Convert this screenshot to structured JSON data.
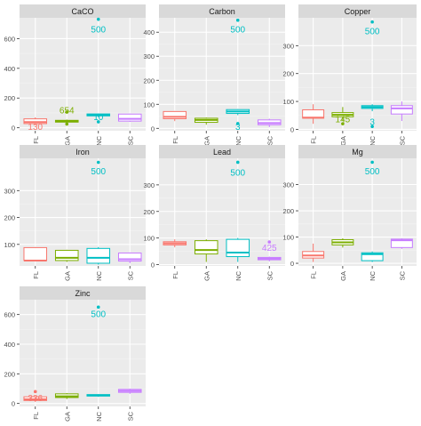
{
  "chart_data": {
    "type": "boxplot",
    "layout": "facet-grid",
    "categories": [
      "FL",
      "GA",
      "NC",
      "SC"
    ],
    "colors": {
      "FL": "#F8766D",
      "GA": "#7CAE00",
      "NC": "#00BFC4",
      "SC": "#C77CFF"
    },
    "panel_background": "#EBEBEB",
    "strip_background": "#D9D9D9",
    "grid": true,
    "legend": "none",
    "panels": [
      {
        "title": "CaCO",
        "ylim": [
          -20,
          740
        ],
        "yticks": [
          0,
          200,
          400,
          600
        ],
        "boxes": [
          {
            "category": "FL",
            "q1": 28,
            "median": 38,
            "q3": 60,
            "lower": 15,
            "upper": 70,
            "outliers": []
          },
          {
            "category": "GA",
            "q1": 38,
            "median": 45,
            "q3": 50,
            "lower": 25,
            "upper": 55,
            "outliers": [
              25,
              105
            ]
          },
          {
            "category": "NC",
            "q1": 80,
            "median": 86,
            "q3": 93,
            "lower": 72,
            "upper": 95,
            "outliers": [
              40,
              730
            ]
          },
          {
            "category": "SC",
            "q1": 45,
            "median": 60,
            "q3": 92,
            "lower": 40,
            "upper": 95,
            "outliers": []
          }
        ],
        "annotations": [
          {
            "text": "500",
            "category": "NC",
            "y": 660
          },
          {
            "text": "654",
            "category": "GA",
            "y": 115
          },
          {
            "text": "130",
            "category": "FL",
            "y": 5
          },
          {
            "text": "10",
            "category": "NC",
            "y": 70
          }
        ]
      },
      {
        "title": "Carbon",
        "ylim": [
          -10,
          460
        ],
        "yticks": [
          0,
          100,
          200,
          300,
          400
        ],
        "boxes": [
          {
            "category": "FL",
            "q1": 40,
            "median": 48,
            "q3": 70,
            "lower": 30,
            "upper": 72,
            "outliers": []
          },
          {
            "category": "GA",
            "q1": 25,
            "median": 35,
            "q3": 42,
            "lower": 15,
            "upper": 45,
            "outliers": []
          },
          {
            "category": "NC",
            "q1": 62,
            "median": 70,
            "q3": 78,
            "lower": 55,
            "upper": 80,
            "outliers": [
              20,
              450
            ]
          },
          {
            "category": "SC",
            "q1": 15,
            "median": 22,
            "q3": 35,
            "lower": 5,
            "upper": 40,
            "outliers": []
          }
        ],
        "annotations": [
          {
            "text": "500",
            "category": "NC",
            "y": 410
          },
          {
            "text": "3",
            "category": "NC",
            "y": 5
          }
        ]
      },
      {
        "title": "Copper",
        "ylim": [
          -5,
          400
        ],
        "yticks": [
          0,
          100,
          200,
          300
        ],
        "boxes": [
          {
            "category": "FL",
            "q1": 40,
            "median": 42,
            "q3": 70,
            "lower": 20,
            "upper": 90,
            "outliers": []
          },
          {
            "category": "GA",
            "q1": 45,
            "median": 52,
            "q3": 60,
            "lower": 30,
            "upper": 80,
            "outliers": [
              20
            ]
          },
          {
            "category": "NC",
            "q1": 75,
            "median": 80,
            "q3": 85,
            "lower": 65,
            "upper": 90,
            "outliers": [
              10,
              385
            ]
          },
          {
            "category": "SC",
            "q1": 55,
            "median": 75,
            "q3": 85,
            "lower": 30,
            "upper": 100,
            "outliers": []
          }
        ],
        "annotations": [
          {
            "text": "500",
            "category": "NC",
            "y": 350
          },
          {
            "text": "145",
            "category": "GA",
            "y": 35
          },
          {
            "text": "3",
            "category": "NC",
            "y": 25
          }
        ]
      },
      {
        "title": "Iron",
        "ylim": [
          20,
          420
        ],
        "yticks": [
          100,
          200,
          300
        ],
        "boxes": [
          {
            "category": "FL",
            "q1": 40,
            "median": 40,
            "q3": 88,
            "lower": 40,
            "upper": 90,
            "outliers": []
          },
          {
            "category": "GA",
            "q1": 40,
            "median": 50,
            "q3": 78,
            "lower": 35,
            "upper": 80,
            "outliers": []
          },
          {
            "category": "NC",
            "q1": 30,
            "median": 50,
            "q3": 85,
            "lower": 25,
            "upper": 90,
            "outliers": [
              405
            ]
          },
          {
            "category": "SC",
            "q1": 38,
            "median": 45,
            "q3": 68,
            "lower": 30,
            "upper": 70,
            "outliers": []
          }
        ],
        "annotations": [
          {
            "text": "500",
            "category": "NC",
            "y": 370
          }
        ]
      },
      {
        "title": "Lead",
        "ylim": [
          -5,
          400
        ],
        "yticks": [
          0,
          100,
          200,
          300
        ],
        "boxes": [
          {
            "category": "FL",
            "q1": 74,
            "median": 80,
            "q3": 86,
            "lower": 65,
            "upper": 95,
            "outliers": []
          },
          {
            "category": "GA",
            "q1": 40,
            "median": 55,
            "q3": 90,
            "lower": 10,
            "upper": 95,
            "outliers": []
          },
          {
            "category": "NC",
            "q1": 30,
            "median": 45,
            "q3": 95,
            "lower": 10,
            "upper": 100,
            "outliers": [
              385
            ]
          },
          {
            "category": "SC",
            "q1": 18,
            "median": 22,
            "q3": 27,
            "lower": 12,
            "upper": 30,
            "outliers": [
              85
            ]
          }
        ],
        "annotations": [
          {
            "text": "500",
            "category": "NC",
            "y": 345
          },
          {
            "text": "425",
            "category": "SC",
            "y": 62
          }
        ]
      },
      {
        "title": "Mg",
        "ylim": [
          -10,
          400
        ],
        "yticks": [
          0,
          100,
          200,
          300
        ],
        "boxes": [
          {
            "category": "FL",
            "q1": 20,
            "median": 30,
            "q3": 45,
            "lower": 5,
            "upper": 75,
            "outliers": []
          },
          {
            "category": "GA",
            "q1": 70,
            "median": 80,
            "q3": 90,
            "lower": 60,
            "upper": 95,
            "outliers": []
          },
          {
            "category": "NC",
            "q1": 10,
            "median": 35,
            "q3": 40,
            "lower": 5,
            "upper": 45,
            "outliers": [
              385
            ]
          },
          {
            "category": "SC",
            "q1": 60,
            "median": 88,
            "q3": 92,
            "lower": 55,
            "upper": 95,
            "outliers": []
          }
        ],
        "annotations": [
          {
            "text": "500",
            "category": "NC",
            "y": 350
          }
        ]
      },
      {
        "title": "Zinc",
        "ylim": [
          -20,
          700
        ],
        "yticks": [
          0,
          200,
          400,
          600
        ],
        "boxes": [
          {
            "category": "FL",
            "q1": 20,
            "median": 28,
            "q3": 45,
            "lower": 10,
            "upper": 50,
            "outliers": [
              80
            ]
          },
          {
            "category": "GA",
            "q1": 40,
            "median": 48,
            "q3": 65,
            "lower": 30,
            "upper": 70,
            "outliers": []
          },
          {
            "category": "NC",
            "q1": 50,
            "median": 55,
            "q3": 60,
            "lower": 45,
            "upper": 62,
            "outliers": [
              650
            ]
          },
          {
            "category": "SC",
            "q1": 75,
            "median": 85,
            "q3": 95,
            "lower": 65,
            "upper": 100,
            "outliers": []
          }
        ],
        "annotations": [
          {
            "text": "500",
            "category": "NC",
            "y": 600
          },
          {
            "text": "336",
            "category": "FL",
            "y": 35
          }
        ]
      }
    ]
  }
}
